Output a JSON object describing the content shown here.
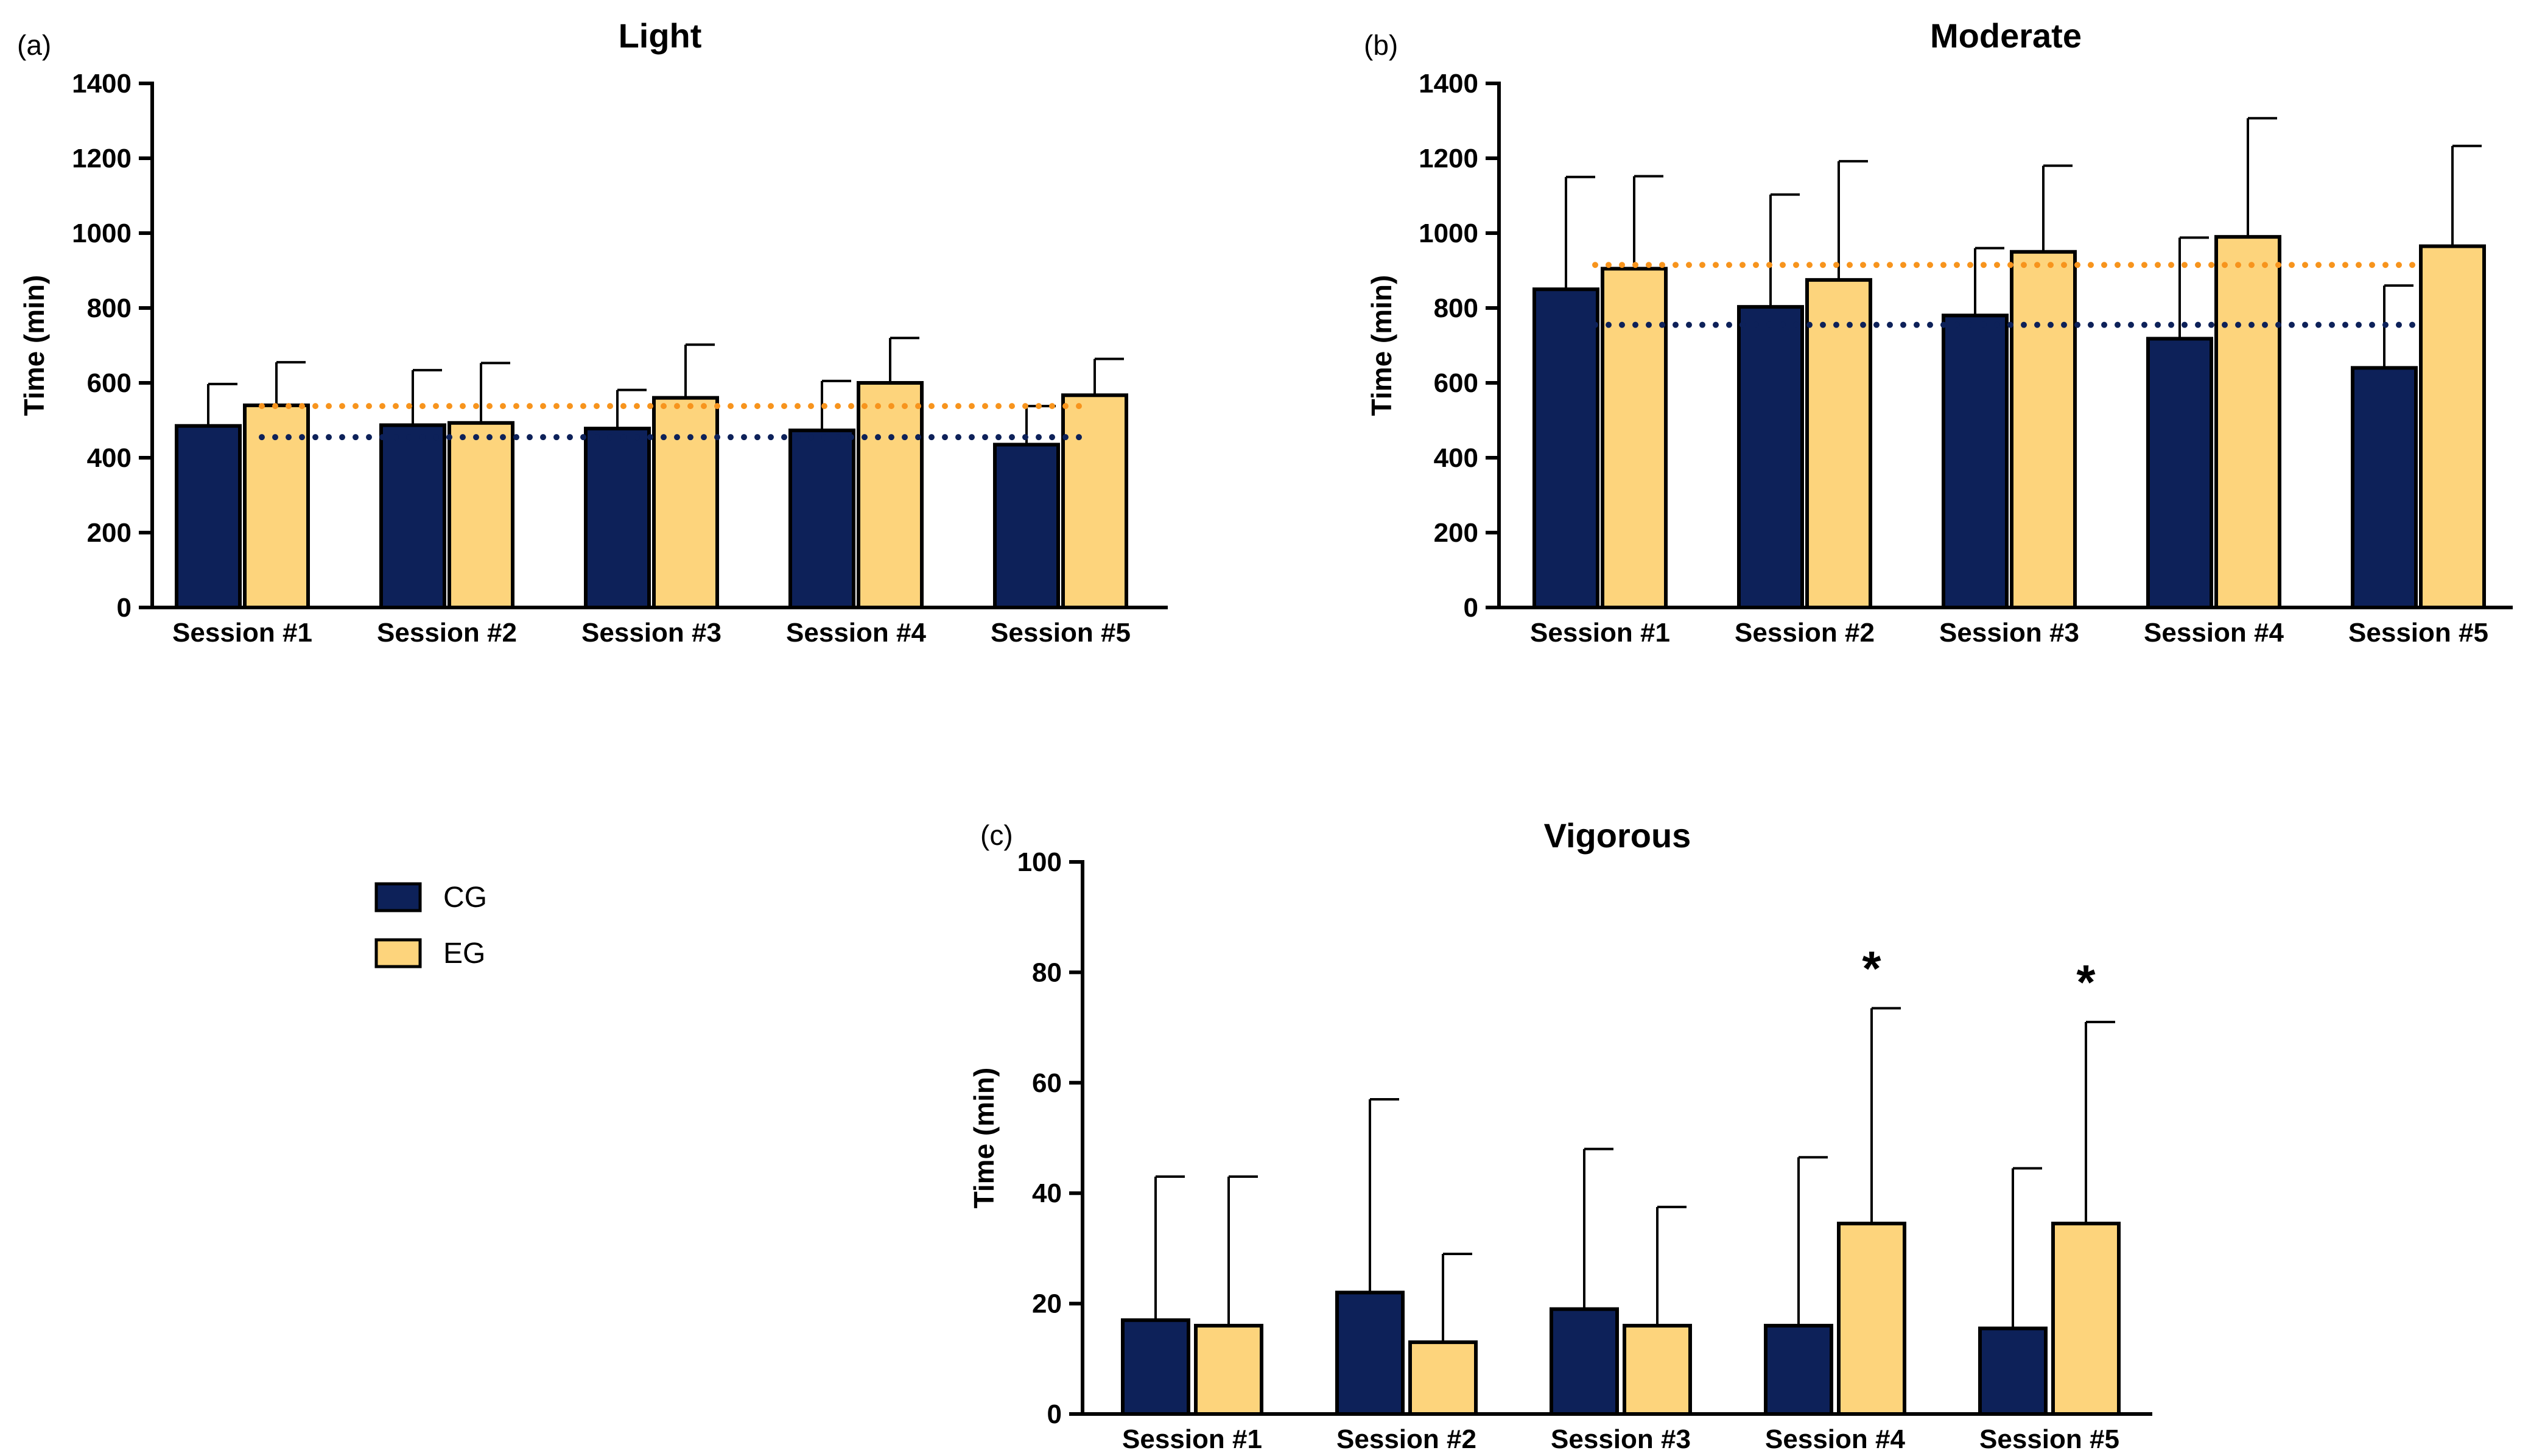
{
  "legend": {
    "items": [
      {
        "label": "CG",
        "color": "#0d2159"
      },
      {
        "label": "EG",
        "color": "#fdd47c"
      }
    ]
  },
  "colors": {
    "cg": "#0d2159",
    "eg": "#fdd47c",
    "cg_mean_line": "#0d2159",
    "eg_mean_line": "#f7941d",
    "outline": "#000000"
  },
  "chart_data": [
    {
      "type": "bar",
      "panel_label": "(a)",
      "title": "Light",
      "ylabel": "Time (min)",
      "xlabel": "",
      "ylim": [
        0,
        1400
      ],
      "yticks": [
        0,
        200,
        400,
        600,
        800,
        1000,
        1200,
        1400
      ],
      "categories": [
        "Session #1",
        "Session #2",
        "Session #3",
        "Session #4",
        "Session #5"
      ],
      "series": [
        {
          "name": "CG",
          "values": [
            485,
            487,
            478,
            473,
            435
          ],
          "errors": [
            112,
            147,
            103,
            132,
            103
          ]
        },
        {
          "name": "EG",
          "values": [
            540,
            493,
            560,
            600,
            567
          ],
          "errors": [
            115,
            160,
            142,
            120,
            97
          ]
        }
      ],
      "reference_lines": [
        {
          "series": "EG",
          "value": 538
        },
        {
          "series": "CG",
          "value": 455
        }
      ],
      "annotations": []
    },
    {
      "type": "bar",
      "panel_label": "(b)",
      "title": "Moderate",
      "ylabel": "Time (min)",
      "xlabel": "",
      "ylim": [
        0,
        1400
      ],
      "yticks": [
        0,
        200,
        400,
        600,
        800,
        1000,
        1200,
        1400
      ],
      "categories": [
        "Session #1",
        "Session #2",
        "Session #3",
        "Session #4",
        "Session #5"
      ],
      "series": [
        {
          "name": "CG",
          "values": [
            850,
            803,
            780,
            718,
            640
          ],
          "errors": [
            300,
            300,
            180,
            270,
            220
          ]
        },
        {
          "name": "EG",
          "values": [
            905,
            875,
            950,
            990,
            965
          ],
          "errors": [
            247,
            317,
            230,
            317,
            268
          ]
        }
      ],
      "reference_lines": [
        {
          "series": "EG",
          "value": 915
        },
        {
          "series": "CG",
          "value": 755
        }
      ],
      "annotations": []
    },
    {
      "type": "bar",
      "panel_label": "(c)",
      "title": "Vigorous",
      "ylabel": "Time (min)",
      "xlabel": "",
      "ylim": [
        0,
        100
      ],
      "yticks": [
        0,
        20,
        40,
        60,
        80,
        100
      ],
      "categories": [
        "Session #1",
        "Session #2",
        "Session #3",
        "Session #4",
        "Session #5"
      ],
      "series": [
        {
          "name": "CG",
          "values": [
            17,
            22,
            19,
            16,
            15.5
          ],
          "errors": [
            26,
            35,
            29,
            30.5,
            29
          ]
        },
        {
          "name": "EG",
          "values": [
            16,
            13,
            16,
            34.5,
            34.5
          ],
          "errors": [
            27,
            16,
            21.5,
            39,
            36.5
          ]
        }
      ],
      "reference_lines": [],
      "annotations": [
        {
          "category": "Session #4",
          "series": "EG",
          "text": "*"
        },
        {
          "category": "Session #5",
          "series": "EG",
          "text": "*"
        }
      ]
    }
  ]
}
